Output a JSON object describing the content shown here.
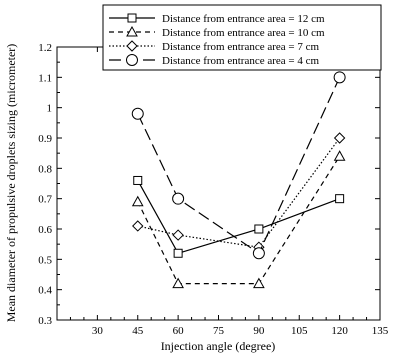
{
  "chart_data": {
    "type": "line",
    "xlabel": "Injection angle (degree)",
    "ylabel": "Mean diameter of propulsive droplets sizing (micrometer)",
    "xlim": [
      15,
      135
    ],
    "ylim": [
      0.3,
      1.2
    ],
    "xticks": [
      30,
      45,
      60,
      75,
      90,
      105,
      120,
      135
    ],
    "yticks": [
      0.3,
      0.4,
      0.5,
      0.6,
      0.7,
      0.8,
      0.9,
      1,
      1.1,
      1.2
    ],
    "xtick_labels": [
      "30",
      "45",
      "60",
      "75",
      "90",
      "105",
      "120",
      "135"
    ],
    "ytick_labels": [
      "0.3",
      "0.4",
      "0.5",
      "0.6",
      "0.7",
      "0.8",
      "0.9",
      "1",
      "1.1",
      "1.2"
    ],
    "grid": false,
    "legend_position": "top",
    "x": [
      45,
      60,
      90,
      120
    ],
    "series": [
      {
        "name": "Distance from entrance area = 12 cm",
        "values": [
          0.76,
          0.52,
          0.6,
          0.7
        ],
        "marker": "square",
        "dash": "solid"
      },
      {
        "name": "Distance from entrance area = 10 cm",
        "values": [
          0.69,
          0.42,
          0.42,
          0.84
        ],
        "marker": "triangle",
        "dash": "dashed"
      },
      {
        "name": "Distance from entrance area = 7 cm",
        "values": [
          0.61,
          0.58,
          0.54,
          0.9
        ],
        "marker": "diamond",
        "dash": "dotted"
      },
      {
        "name": "Distance from entrance area = 4 cm",
        "values": [
          0.98,
          0.7,
          0.52,
          1.1
        ],
        "marker": "circle",
        "dash": "longdash"
      }
    ]
  }
}
